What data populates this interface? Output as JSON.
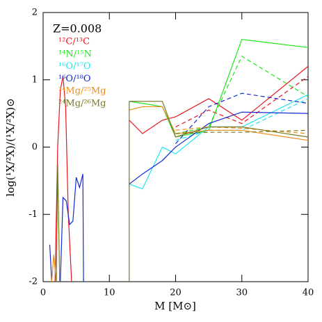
{
  "chart_data": {
    "type": "line",
    "annotation": "Z=0.008",
    "xlabel": "M [M⊙]",
    "ylabel": "log(¹X/²X)/(¹X/²X)⊙",
    "xlim": [
      0,
      40
    ],
    "ylim": [
      -2,
      2
    ],
    "xticks": [
      0,
      10,
      20,
      30,
      40
    ],
    "yticks": [
      -2,
      -1,
      0,
      1,
      2
    ],
    "series": [
      {
        "name": "¹²C/¹³C",
        "color": "#e8141e",
        "x": [
          1.8,
          2.2,
          2.6,
          3,
          3.4,
          3.8,
          4.3,
          null,
          13,
          15,
          18,
          20,
          25,
          30,
          40
        ],
        "values": [
          -2,
          0,
          0.85,
          1.05,
          0.6,
          -1,
          -2,
          null,
          0.4,
          0.2,
          0.4,
          0.45,
          0.72,
          0.4,
          1.2
        ],
        "dashed": {
          "x": [
            20,
            25,
            30,
            40
          ],
          "values": [
            0.3,
            0.55,
            0.35,
            1.05
          ]
        }
      },
      {
        "name": "¹⁴N/¹⁵N",
        "color": "#1ee61e",
        "x": [
          13,
          15,
          18,
          20,
          25,
          30,
          40
        ],
        "values": [
          0.68,
          0.65,
          0.6,
          0.15,
          0.25,
          1.6,
          1.48
        ],
        "dashed": {
          "x": [
            20,
            25,
            30,
            40
          ],
          "values": [
            0.2,
            0.3,
            1.35,
            0.75
          ]
        }
      },
      {
        "name": "¹⁶O/¹⁷O",
        "color": "#1ee6f0",
        "x": [
          13,
          15,
          18,
          20,
          25,
          30,
          40
        ],
        "values": [
          -0.55,
          -0.62,
          0,
          -0.1,
          0.3,
          0.3,
          0.78
        ],
        "dashed": {
          "x": [
            20,
            25,
            30,
            40
          ],
          "values": [
            0.1,
            0.25,
            0.25,
            0.72
          ]
        }
      },
      {
        "name": "¹⁶O/¹⁸O",
        "color": "#1428d2",
        "x": [
          1,
          1.3,
          null,
          2.6,
          3,
          3.5,
          4,
          4.5,
          5,
          5.5,
          6,
          6.1,
          null,
          13,
          15,
          18,
          20,
          25,
          30,
          40
        ],
        "values": [
          -1.45,
          -2,
          null,
          -2,
          -0.75,
          -0.8,
          -1.15,
          -1.1,
          -0.45,
          -0.6,
          -0.4,
          -2,
          null,
          -0.55,
          -0.4,
          -0.2,
          0,
          0.35,
          0.52,
          0.5
        ],
        "dashed": {
          "x": [
            20,
            25,
            30,
            40
          ],
          "values": [
            0.05,
            0.6,
            0.8,
            0.65
          ]
        }
      },
      {
        "name": "²⁴Mg/²⁵Mg",
        "color": "#f08c14",
        "x": [
          1.3,
          1.6,
          2,
          null,
          13,
          15,
          18,
          20,
          25,
          30,
          40
        ],
        "values": [
          -2,
          -1.6,
          -2,
          null,
          0.55,
          0.6,
          0.6,
          0.2,
          0.25,
          0.25,
          0.1
        ],
        "dashed": {
          "x": [
            20,
            25,
            30,
            40
          ],
          "values": [
            0.25,
            0.3,
            0.28,
            0.2
          ]
        }
      },
      {
        "name": "²⁴Mg/²⁶Mg",
        "color": "#78781e",
        "x": [
          2,
          2.2,
          2.5,
          null,
          13,
          13,
          15,
          18,
          20,
          25,
          30,
          40
        ],
        "values": [
          -2,
          -0.25,
          -2,
          null,
          -2,
          0.68,
          0.68,
          0.68,
          0.15,
          0.3,
          0.3,
          0.15
        ],
        "dashed": {
          "x": [
            20,
            25,
            30,
            40
          ],
          "values": [
            0.2,
            0.22,
            0.22,
            0.25
          ]
        }
      }
    ]
  }
}
